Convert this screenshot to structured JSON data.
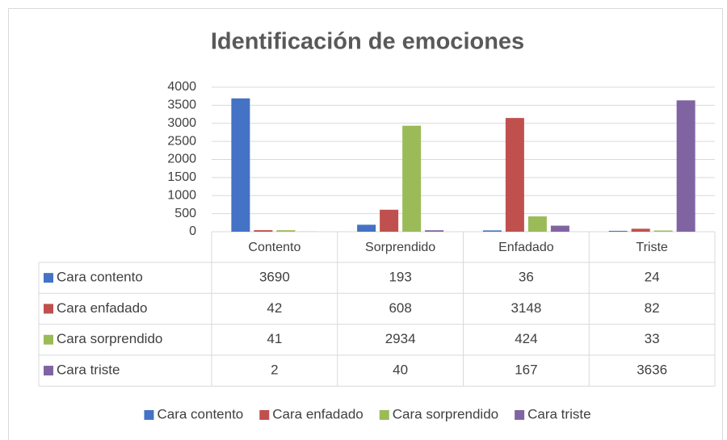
{
  "chart_data": {
    "type": "bar",
    "title": "Identificación de emociones",
    "categories": [
      "Contento",
      "Sorprendido",
      "Enfadado",
      "Triste"
    ],
    "series": [
      {
        "name": "Cara contento",
        "color": "#4472c4",
        "values": [
          3690,
          193,
          36,
          24
        ]
      },
      {
        "name": "Cara enfadado",
        "color": "#c0504d",
        "values": [
          42,
          608,
          3148,
          82
        ]
      },
      {
        "name": "Cara sorprendido",
        "color": "#9bbb59",
        "values": [
          41,
          2934,
          424,
          33
        ]
      },
      {
        "name": "Cara triste",
        "color": "#8064a2",
        "values": [
          2,
          40,
          167,
          3636
        ]
      }
    ],
    "ylim": [
      0,
      4000
    ],
    "yticks": [
      0,
      500,
      1000,
      1500,
      2000,
      2500,
      3000,
      3500,
      4000
    ],
    "grid": true,
    "legend": "bottom"
  }
}
